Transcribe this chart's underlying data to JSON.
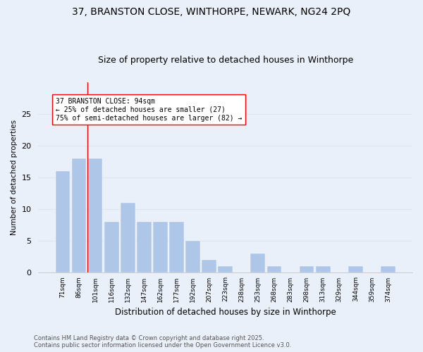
{
  "title_line1": "37, BRANSTON CLOSE, WINTHORPE, NEWARK, NG24 2PQ",
  "title_line2": "Size of property relative to detached houses in Winthorpe",
  "xlabel": "Distribution of detached houses by size in Winthorpe",
  "ylabel": "Number of detached properties",
  "categories": [
    "71sqm",
    "86sqm",
    "101sqm",
    "116sqm",
    "132sqm",
    "147sqm",
    "162sqm",
    "177sqm",
    "192sqm",
    "207sqm",
    "223sqm",
    "238sqm",
    "253sqm",
    "268sqm",
    "283sqm",
    "298sqm",
    "313sqm",
    "329sqm",
    "344sqm",
    "359sqm",
    "374sqm"
  ],
  "values": [
    16,
    18,
    18,
    8,
    11,
    8,
    8,
    8,
    5,
    2,
    1,
    0,
    3,
    1,
    0,
    1,
    1,
    0,
    1,
    0,
    1
  ],
  "bar_color": "#aec6e8",
  "bar_edge_color": "#aec6e8",
  "grid_color": "#dce6f1",
  "background_color": "#eaf0f9",
  "annotation_box_text": "37 BRANSTON CLOSE: 94sqm\n← 25% of detached houses are smaller (27)\n75% of semi-detached houses are larger (82) →",
  "redline_x": 1.5,
  "ylim": [
    0,
    30
  ],
  "yticks": [
    0,
    5,
    10,
    15,
    20,
    25
  ],
  "footer_line1": "Contains HM Land Registry data © Crown copyright and database right 2025.",
  "footer_line2": "Contains public sector information licensed under the Open Government Licence v3.0.",
  "annotation_fontsize": 7,
  "title_fontsize1": 10,
  "title_fontsize2": 9,
  "figsize": [
    6.0,
    5.0
  ],
  "dpi": 100
}
